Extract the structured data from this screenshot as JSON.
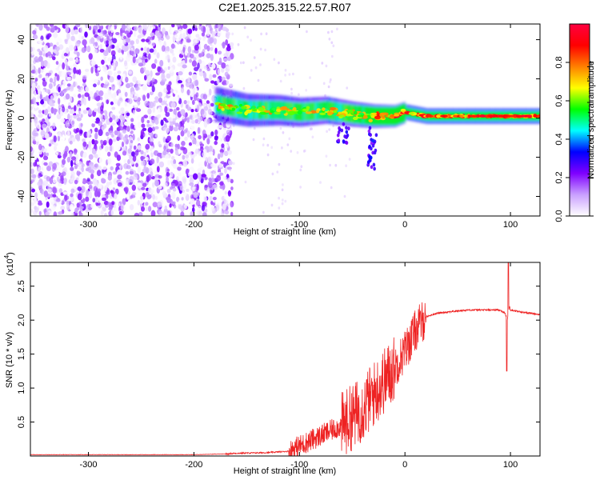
{
  "chart_data": [
    {
      "type": "heatmap",
      "title": "C2E1.2025.315.22.57.R07",
      "xlabel": "Height of straight line (km)",
      "ylabel": "Frequency (Hz)",
      "xlim": [
        -355,
        128
      ],
      "ylim": [
        -50,
        48
      ],
      "x_ticks": [
        -300,
        -200,
        -100,
        0,
        100
      ],
      "y_ticks": [
        -40,
        -20,
        0,
        20,
        40
      ],
      "colorbar": {
        "label": "Normalized spectral amplitude",
        "range": [
          0,
          1
        ],
        "ticks": [
          "0.0",
          "0.2",
          "0.4",
          "0.6",
          "0.8"
        ],
        "colors": [
          "#ffffff",
          "#c9a0ff",
          "#7f00ff",
          "#0000ff",
          "#00ffff",
          "#00ff00",
          "#ffff00",
          "#ff8000",
          "#ff0000",
          "#ff0040"
        ]
      },
      "regions": [
        {
          "label": "noise",
          "x_range": [
            -355,
            -170
          ],
          "freq_range": [
            -50,
            48
          ],
          "amplitude": [
            0.0,
            0.25
          ]
        },
        {
          "label": "signal_band",
          "x_range": [
            -180,
            128
          ],
          "freq_center": [
            [
              -180,
              7
            ],
            [
              -150,
              4
            ],
            [
              -120,
              4
            ],
            [
              -100,
              3
            ],
            [
              -75,
              4
            ],
            [
              -50,
              2
            ],
            [
              -30,
              1
            ],
            [
              -10,
              1
            ],
            [
              0,
              3
            ],
            [
              20,
              1
            ],
            [
              60,
              1
            ],
            [
              100,
              1
            ],
            [
              128,
              1
            ]
          ],
          "amplitude": [
            0.2,
            1.0
          ]
        }
      ]
    },
    {
      "type": "line",
      "xlabel": "Height of straight line (km)",
      "ylabel": "SNR (10 * v/v)",
      "multiplier": "(x10",
      "multiplier_exp": "4",
      "multiplier_close": ")",
      "xlim": [
        -355,
        128
      ],
      "ylim": [
        0,
        2.85
      ],
      "x_ticks": [
        -300,
        -200,
        -100,
        0,
        100
      ],
      "y_ticks": [
        0.5,
        1.0,
        1.5,
        2.0,
        2.5
      ],
      "y_tick_labels": [
        "0.5",
        "1.0",
        "1.5",
        "2.0",
        "2.5"
      ],
      "series_color": "#ee2222",
      "series": [
        {
          "name": "SNR",
          "x": [
            -355,
            -200,
            -170,
            -160,
            -130,
            -110,
            -100,
            -80,
            -60,
            -40,
            -30,
            -20,
            -10,
            0,
            10,
            20,
            30,
            40,
            60,
            80,
            90,
            95,
            97,
            99,
            100,
            110,
            120,
            128
          ],
          "values": [
            0.02,
            0.02,
            0.03,
            0.04,
            0.05,
            0.07,
            0.15,
            0.3,
            0.45,
            0.7,
            0.9,
            1.1,
            1.3,
            1.55,
            1.85,
            2.05,
            2.1,
            2.12,
            2.15,
            2.15,
            2.15,
            2.1,
            2.0,
            2.2,
            2.15,
            2.12,
            2.1,
            2.08
          ]
        }
      ]
    }
  ]
}
